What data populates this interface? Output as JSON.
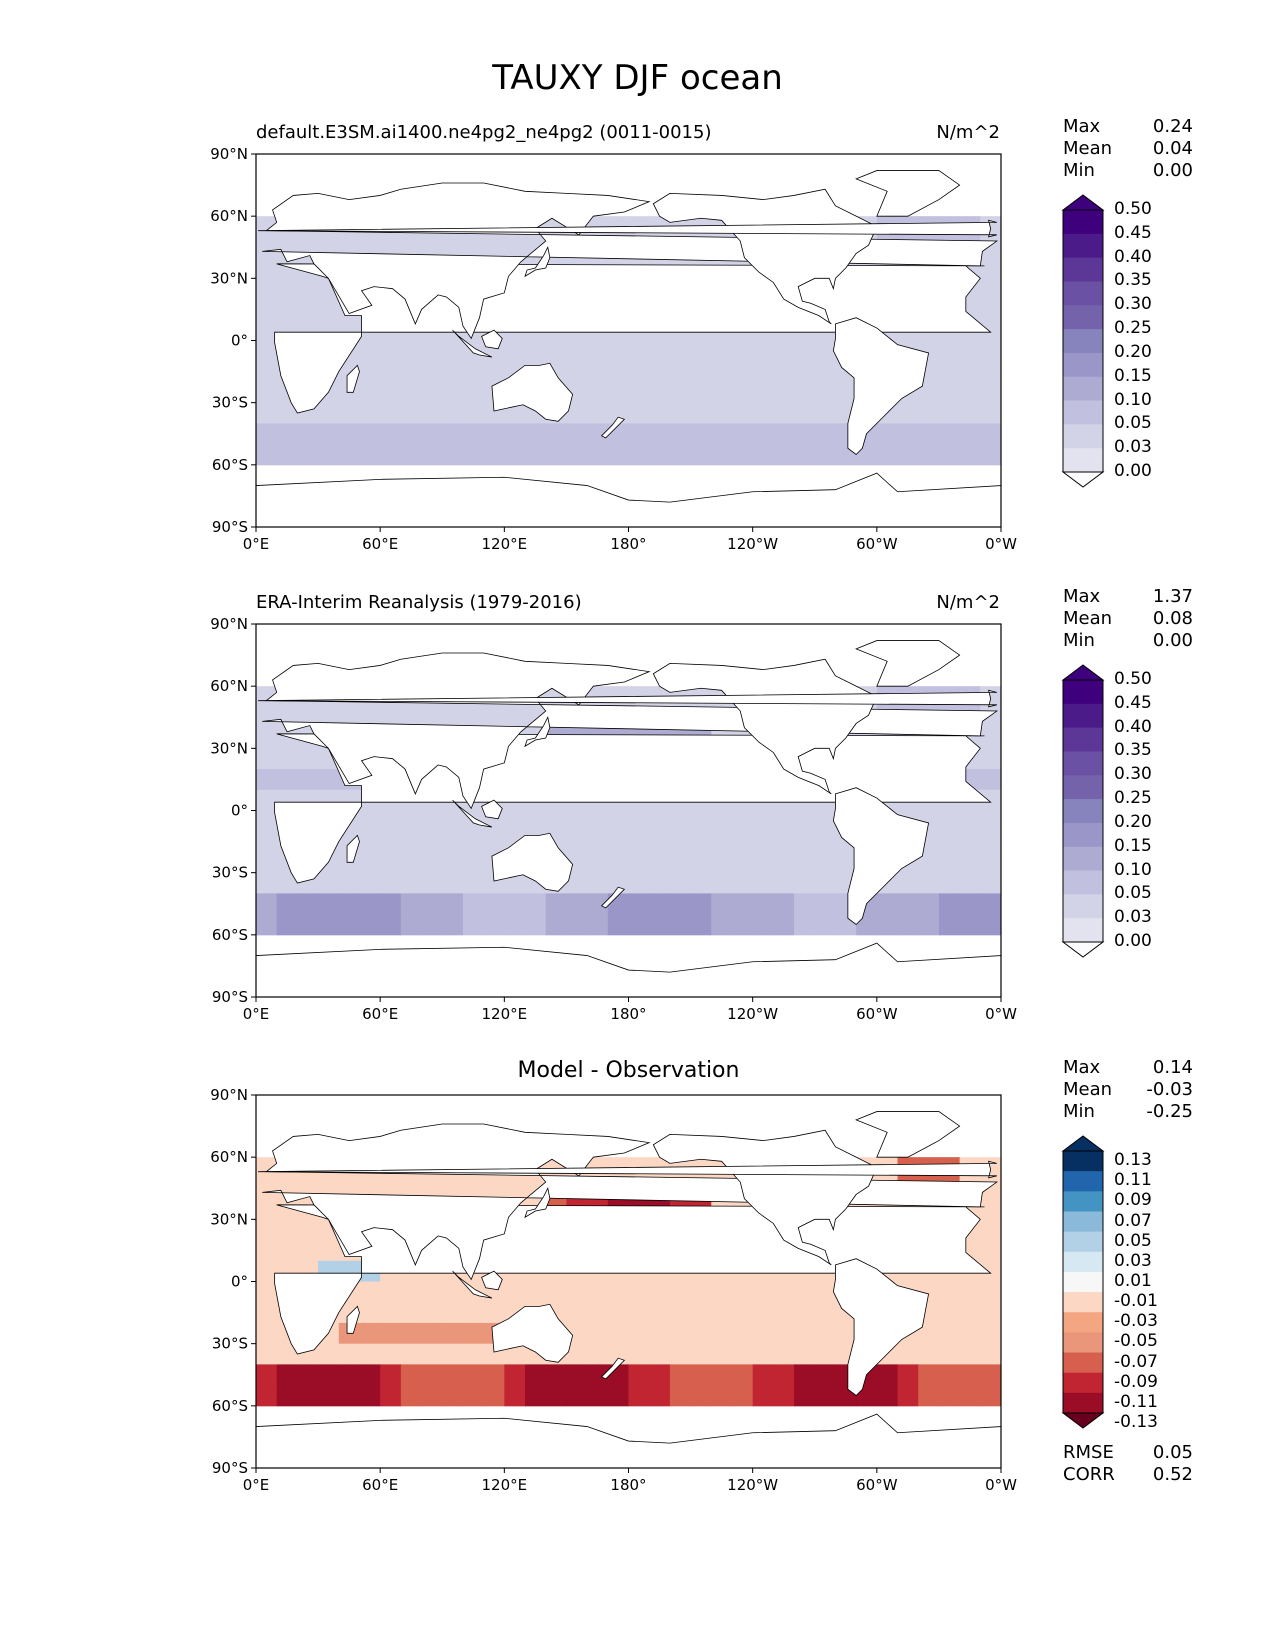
{
  "title": "TAUXY DJF ocean",
  "colors": {
    "purples": [
      "#fcfbfd",
      "#f2f0f7",
      "#e3e2ef",
      "#d3d3e8",
      "#c2c0df",
      "#aeabd3",
      "#9a97c8",
      "#8683bd",
      "#7462ab",
      "#6b51a3",
      "#5c3797",
      "#4b1b8a",
      "#3f007d"
    ],
    "diff": [
      "#67001f",
      "#9b0d26",
      "#c22532",
      "#d6604d",
      "#e9967b",
      "#f4a582",
      "#fbd7c4",
      "#f7f7f7",
      "#d6e8f2",
      "#b2d1e6",
      "#8ab9d9",
      "#4393c3",
      "#2166ac",
      "#053061"
    ],
    "land_edge": "#000000"
  },
  "panels": [
    {
      "title_left": "default.E3SM.ai1400.ne4pg2_ne4pg2 (0011-0015)",
      "title_right": "N/m^2",
      "stats": [
        [
          "Max",
          "0.24"
        ],
        [
          "Mean",
          "0.04"
        ],
        [
          "Min",
          "0.00"
        ]
      ],
      "colorbar_ticks": [
        "0.50",
        "0.45",
        "0.40",
        "0.35",
        "0.30",
        "0.25",
        "0.20",
        "0.15",
        "0.10",
        "0.05",
        "0.03",
        "0.00"
      ]
    },
    {
      "title_left": "ERA-Interim Reanalysis (1979-2016)",
      "title_right": "N/m^2",
      "stats": [
        [
          "Max",
          "1.37"
        ],
        [
          "Mean",
          "0.08"
        ],
        [
          "Min",
          "0.00"
        ]
      ],
      "colorbar_ticks": [
        "0.50",
        "0.45",
        "0.40",
        "0.35",
        "0.30",
        "0.25",
        "0.20",
        "0.15",
        "0.10",
        "0.05",
        "0.03",
        "0.00"
      ]
    },
    {
      "title_center": "Model - Observation",
      "stats": [
        [
          "Max",
          "0.14"
        ],
        [
          "Mean",
          "-0.03"
        ],
        [
          "Min",
          "-0.25"
        ]
      ],
      "colorbar_ticks": [
        "0.13",
        "0.11",
        "0.09",
        "0.07",
        "0.05",
        "0.03",
        "0.01",
        "-0.01",
        "-0.03",
        "-0.05",
        "-0.07",
        "-0.09",
        "-0.11",
        "-0.13"
      ],
      "metrics": [
        [
          "RMSE",
          "0.05"
        ],
        [
          "CORR",
          "0.52"
        ]
      ]
    }
  ],
  "axes": {
    "lat_ticks": [
      "90°N",
      "60°N",
      "30°N",
      "0°",
      "30°S",
      "60°S",
      "90°S"
    ],
    "lon_ticks": [
      "0°E",
      "60°E",
      "120°E",
      "180°",
      "120°W",
      "60°W",
      "0°W"
    ]
  },
  "chart_data": [
    {
      "type": "heatmap",
      "title": "default.E3SM.ai1400.ne4pg2_ne4pg2 (0011-0015)",
      "units": "N/m^2",
      "xlim": [
        0,
        360
      ],
      "ylim": [
        -90,
        90
      ],
      "levels": [
        0.0,
        0.03,
        0.05,
        0.1,
        0.15,
        0.2,
        0.25,
        0.3,
        0.35,
        0.4,
        0.45,
        0.5
      ],
      "max": 0.24,
      "mean": 0.04,
      "min": 0.0
    },
    {
      "type": "heatmap",
      "title": "ERA-Interim Reanalysis (1979-2016)",
      "units": "N/m^2",
      "xlim": [
        0,
        360
      ],
      "ylim": [
        -90,
        90
      ],
      "levels": [
        0.0,
        0.03,
        0.05,
        0.1,
        0.15,
        0.2,
        0.25,
        0.3,
        0.35,
        0.4,
        0.45,
        0.5
      ],
      "max": 1.37,
      "mean": 0.08,
      "min": 0.0
    },
    {
      "type": "heatmap",
      "title": "Model - Observation",
      "xlim": [
        0,
        360
      ],
      "ylim": [
        -90,
        90
      ],
      "levels": [
        -0.13,
        -0.11,
        -0.09,
        -0.07,
        -0.05,
        -0.03,
        -0.01,
        0.01,
        0.03,
        0.05,
        0.07,
        0.09,
        0.11,
        0.13
      ],
      "max": 0.14,
      "mean": -0.03,
      "min": -0.25,
      "rmse": 0.05,
      "corr": 0.52
    }
  ]
}
